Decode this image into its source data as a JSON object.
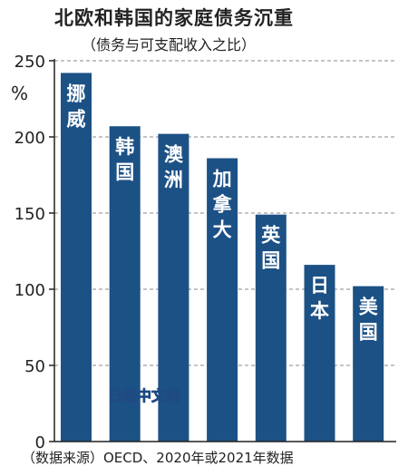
{
  "chart_data": {
    "type": "bar",
    "title": "北欧和韩国的家庭债务沉重",
    "subtitle": "（债务与可支配收入之比）",
    "unit": "%",
    "categories": [
      "挪威",
      "韩国",
      "澳洲",
      "加拿大",
      "英国",
      "日本",
      "美国"
    ],
    "values": [
      242,
      207,
      202,
      186,
      149,
      116,
      102
    ],
    "ylim": [
      0,
      250
    ],
    "yticks": [
      0,
      50,
      100,
      150,
      200,
      250
    ],
    "ytick_labels": [
      "0",
      "50",
      "100",
      "150",
      "200",
      "250"
    ],
    "grid": true,
    "bar_color": "#1c5185",
    "source": "（数据来源）OECD、2020年或2021年数据",
    "watermark": "日经中文网"
  }
}
